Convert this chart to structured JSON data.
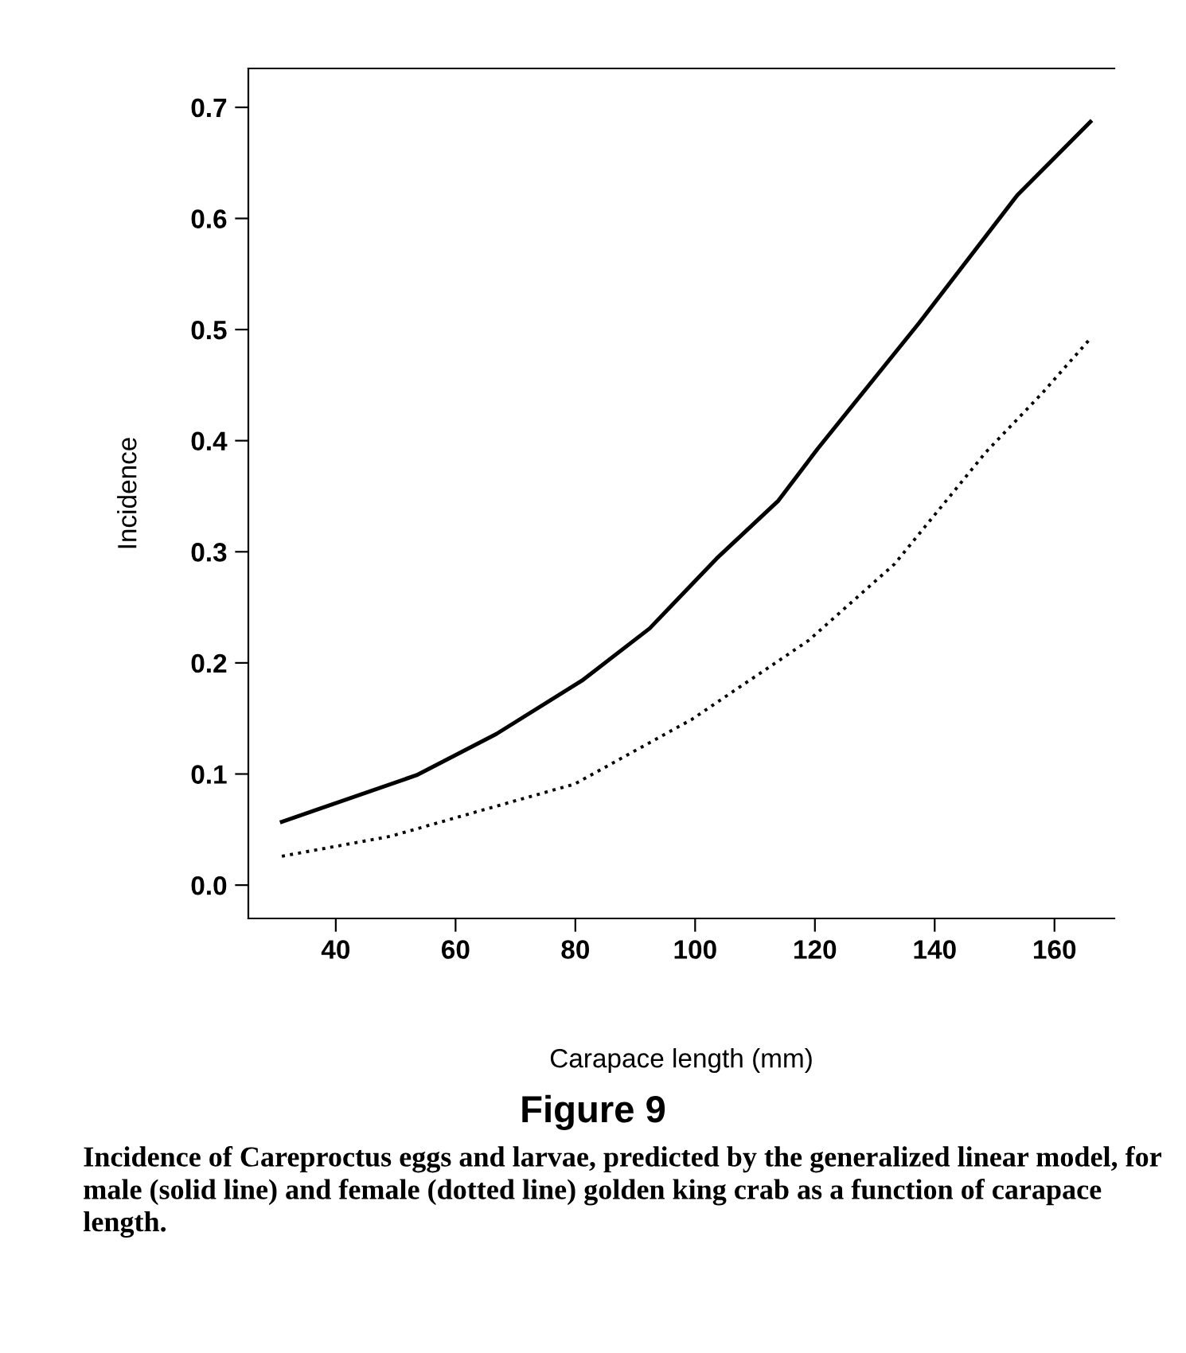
{
  "chart_data": {
    "type": "line",
    "title": "Figure 9",
    "xlabel": "Carapace length (mm)",
    "ylabel": "Incidence",
    "annotations": [
      "Incidence of Careproctus eggs and larvae, predicted by the generalized linear model, for male (solid line) and female (dotted line) golden king crab as a function of carapace length."
    ],
    "series": [
      {
        "color": "#000000",
        "line_style": "solid",
        "x": [
          31,
          53.5,
          66.8,
          81.1,
          92.4,
          103.6,
          113.9,
          120.5,
          137.4,
          153.8,
          166
        ],
        "values": [
          0.057,
          0.099,
          0.136,
          0.184,
          0.231,
          0.294,
          0.346,
          0.393,
          0.506,
          0.621,
          0.687
        ]
      },
      {
        "color": "#000000",
        "line_style": "dotted",
        "x": [
          31,
          49.2,
          63.5,
          79.9,
          99.4,
          118.9,
          133.3,
          148.6,
          158,
          166
        ],
        "values": [
          0.026,
          0.044,
          0.066,
          0.091,
          0.149,
          0.22,
          0.289,
          0.39,
          0.443,
          0.492
        ]
      }
    ],
    "xlim": [
      25.4,
      170
    ],
    "ylim": [
      -0.03,
      0.735
    ],
    "xticks": [
      40,
      60,
      80,
      100,
      120,
      140,
      160
    ],
    "yticks": [
      {
        "value": 0,
        "label": "0.0"
      },
      0.1,
      0.2,
      0.3,
      0.4,
      0.5,
      0.6,
      0.7
    ],
    "grid": false,
    "legend": false
  }
}
